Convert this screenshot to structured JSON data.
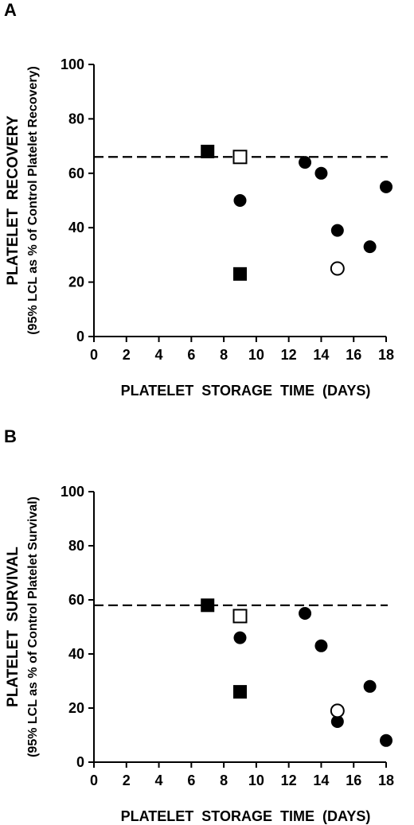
{
  "chart_data": [
    {
      "type": "scatter",
      "panel_label": "A",
      "ylabel": "PLATELET  RECOVERY",
      "ylabel_sub": "(95% LCL as % of Control Platelet Recovery)",
      "xlabel": "PLATELET  STORAGE  TIME  (DAYS)",
      "xlim": [
        0,
        18
      ],
      "ylim": [
        0,
        100
      ],
      "xticks": [
        0,
        2,
        4,
        6,
        8,
        10,
        12,
        14,
        16,
        18
      ],
      "yticks": [
        0,
        20,
        40,
        60,
        80,
        100
      ],
      "reference_line_y": 66,
      "grid": false,
      "series": [
        {
          "marker": "filled-square",
          "points": [
            {
              "x": 7,
              "y": 68
            },
            {
              "x": 9,
              "y": 23
            }
          ]
        },
        {
          "marker": "open-square",
          "points": [
            {
              "x": 9,
              "y": 66
            }
          ]
        },
        {
          "marker": "filled-circle",
          "points": [
            {
              "x": 9,
              "y": 50
            },
            {
              "x": 13,
              "y": 64
            },
            {
              "x": 14,
              "y": 60
            },
            {
              "x": 15,
              "y": 39
            },
            {
              "x": 17,
              "y": 33
            },
            {
              "x": 18,
              "y": 55
            }
          ]
        },
        {
          "marker": "open-circle",
          "points": [
            {
              "x": 15,
              "y": 25
            }
          ]
        }
      ]
    },
    {
      "type": "scatter",
      "panel_label": "B",
      "ylabel": "PLATELET  SURVIVAL",
      "ylabel_sub": "(95% LCL as % of Control Platelet Survival)",
      "xlabel": "PLATELET  STORAGE  TIME  (DAYS)",
      "xlim": [
        0,
        18
      ],
      "ylim": [
        0,
        100
      ],
      "xticks": [
        0,
        2,
        4,
        6,
        8,
        10,
        12,
        14,
        16,
        18
      ],
      "yticks": [
        0,
        20,
        40,
        60,
        80,
        100
      ],
      "reference_line_y": 58,
      "grid": false,
      "series": [
        {
          "marker": "filled-square",
          "points": [
            {
              "x": 7,
              "y": 58
            },
            {
              "x": 9,
              "y": 26
            }
          ]
        },
        {
          "marker": "open-square",
          "points": [
            {
              "x": 9,
              "y": 54
            }
          ]
        },
        {
          "marker": "filled-circle",
          "points": [
            {
              "x": 9,
              "y": 46
            },
            {
              "x": 13,
              "y": 55
            },
            {
              "x": 14,
              "y": 43
            },
            {
              "x": 15,
              "y": 15
            },
            {
              "x": 17,
              "y": 28
            },
            {
              "x": 18,
              "y": 8
            }
          ]
        },
        {
          "marker": "open-circle",
          "points": [
            {
              "x": 15,
              "y": 19
            }
          ]
        }
      ]
    }
  ]
}
